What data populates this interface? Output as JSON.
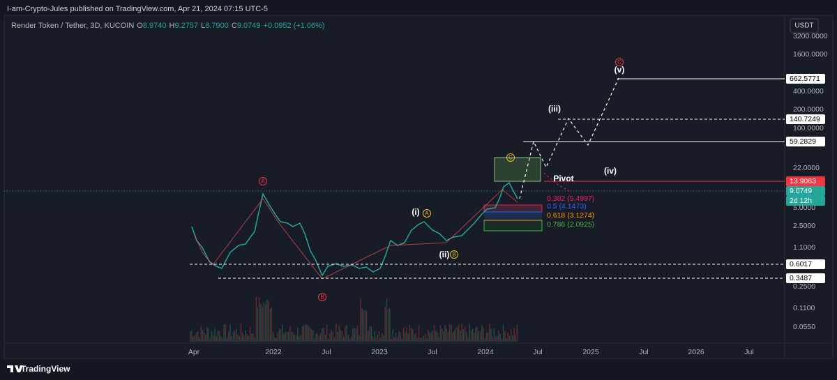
{
  "header": {
    "publisher": "I-am-Crypto-Jules published on TradingView.com, Apr 21, 2024 07:15 UTC-5"
  },
  "legend": {
    "symbol": "Render Token / Tether, 3D, KUCOIN",
    "o": "O",
    "open": "8.9740",
    "h": "H",
    "high": "9.2757",
    "l": "L",
    "low": "8.7900",
    "c": "C",
    "close": "9.0749",
    "change": "+0.0952 (+1.06%)"
  },
  "currency": "USDT",
  "price_axis": [
    "3200.0000",
    "1600.0000",
    "400.0000",
    "200.0000",
    "100.0000",
    "22.0000",
    "5.0000",
    "2.5000",
    "1.1000",
    "0.2500",
    "0.1100",
    "0.0550"
  ],
  "price_tags": {
    "level_1": "662.5771",
    "level_2": "140.7249",
    "level_3": "59.2829",
    "level_4": "13.9063",
    "last": "9.0749",
    "countdown": "2d 12h",
    "level_5": "0.6017",
    "level_6": "0.3487"
  },
  "time_axis": [
    "Apr",
    "2022",
    "Jul",
    "2023",
    "Jul",
    "2024",
    "Jul",
    "2025",
    "Jul",
    "2026",
    "Jul"
  ],
  "waves": {
    "big_a": "A",
    "big_b": "B",
    "big_c": "C",
    "small_a": "A",
    "small_b": "B",
    "small_c": "C",
    "i": "(i)",
    "ii": "(ii)",
    "iii": "(iii)",
    "iv": "(iv)",
    "v": "(v)",
    "pivot": "Pivot"
  },
  "fib": [
    "0.382 (5.4997)",
    "0.5 (4.1473)",
    "0.618 (3.1274)",
    "0.786 (2.0925)"
  ],
  "brand": "TradingView"
}
